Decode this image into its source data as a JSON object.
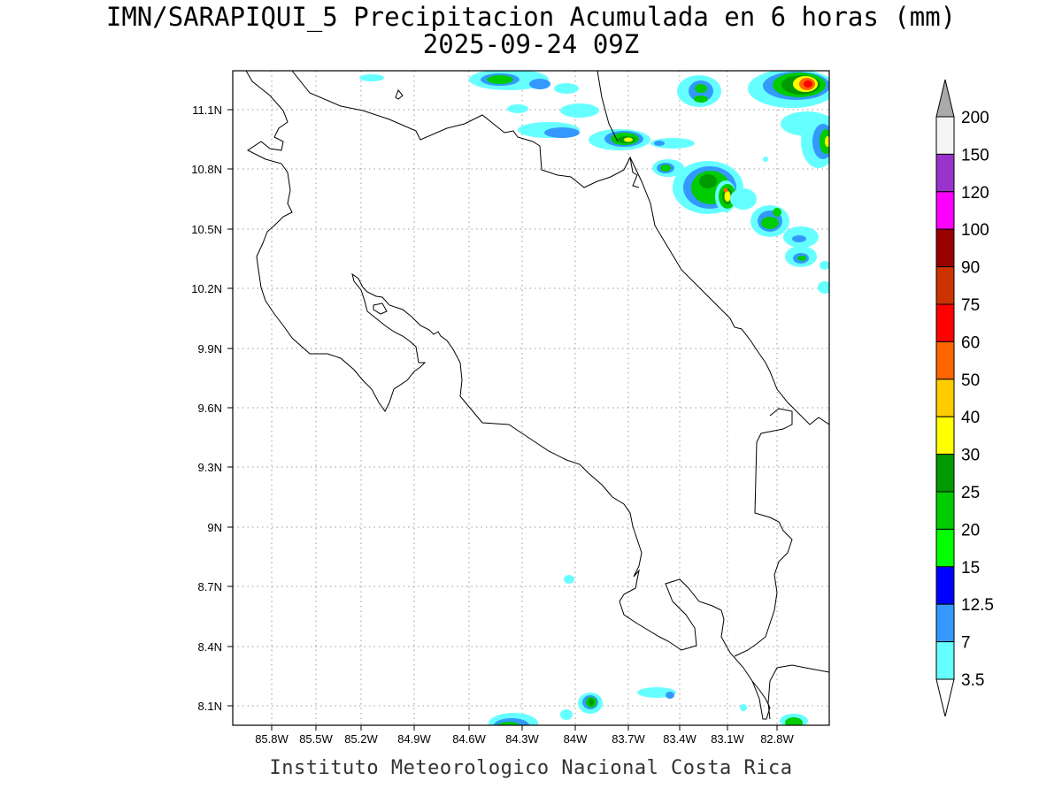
{
  "title": {
    "line1": "IMN/SARAPIQUI_5 Precipitacion Acumulada en 6 horas (mm)",
    "line2": "2025-09-24 09Z"
  },
  "credit": "Instituto Meteorologico Nacional Costa Rica",
  "axes": {
    "x_labels": [
      "85.8W",
      "85.5W",
      "85.2W",
      "84.9W",
      "84.6W",
      "84.3W",
      "84W",
      "83.7W",
      "83.4W",
      "83.1W",
      "82.8W"
    ],
    "y_labels": [
      "11.1N",
      "10.8N",
      "10.5N",
      "10.2N",
      "9.9N",
      "9.6N",
      "9.3N",
      "9N",
      "8.7N",
      "8.4N",
      "8.1N"
    ],
    "grid": "dotted"
  },
  "colorbar": {
    "labels": [
      "200",
      "150",
      "120",
      "100",
      "90",
      "75",
      "60",
      "50",
      "40",
      "30",
      "25",
      "20",
      "15",
      "12.5",
      "7",
      "3.5"
    ],
    "colors": [
      "#f5f5f5",
      "#9933cc",
      "#ff00ff",
      "#990000",
      "#cc3300",
      "#ff0000",
      "#ff6600",
      "#ffcc00",
      "#ffff00",
      "#009900",
      "#00cc00",
      "#00ff00",
      "#0000ff",
      "#3399ff",
      "#66ffff"
    ],
    "top_arrow_color": "#aaaaaa",
    "bottom_arrow_color": "#ffffff"
  }
}
